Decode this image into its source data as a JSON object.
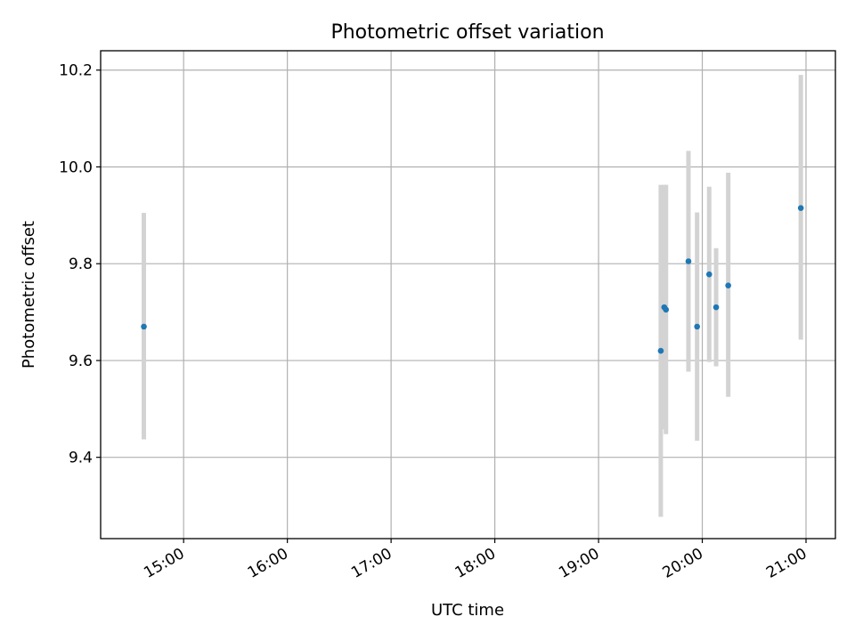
{
  "chart_data": {
    "type": "scatter",
    "title": "Photometric offset variation",
    "xlabel": "UTC time",
    "ylabel": "Photometric offset",
    "x_ticks": [
      "15:00",
      "16:00",
      "17:00",
      "18:00",
      "19:00",
      "20:00",
      "21:00"
    ],
    "y_ticks": [
      "9.4",
      "9.6",
      "9.8",
      "10.0",
      "10.2"
    ],
    "xlim": [
      "14:12",
      "21:17"
    ],
    "ylim": [
      9.232,
      10.24
    ],
    "grid": true,
    "point_color": "#1f77b4",
    "errorbar_color": "#d3d3d3",
    "points": [
      {
        "time": "14:37",
        "y": 9.67,
        "ylow": 9.437,
        "yhigh": 9.905
      },
      {
        "time": "19:36",
        "y": 9.62,
        "ylow": 9.277,
        "yhigh": 9.963
      },
      {
        "time": "19:38",
        "y": 9.71,
        "ylow": 9.458,
        "yhigh": 9.963
      },
      {
        "time": "19:39",
        "y": 9.705,
        "ylow": 9.448,
        "yhigh": 9.963
      },
      {
        "time": "19:52",
        "y": 9.805,
        "ylow": 9.577,
        "yhigh": 10.033
      },
      {
        "time": "19:57",
        "y": 9.67,
        "ylow": 9.434,
        "yhigh": 9.906
      },
      {
        "time": "20:04",
        "y": 9.778,
        "ylow": 9.597,
        "yhigh": 9.959
      },
      {
        "time": "20:08",
        "y": 9.71,
        "ylow": 9.588,
        "yhigh": 9.832
      },
      {
        "time": "20:15",
        "y": 9.755,
        "ylow": 9.525,
        "yhigh": 9.988
      },
      {
        "time": "20:57",
        "y": 9.915,
        "ylow": 9.643,
        "yhigh": 10.19
      }
    ]
  }
}
